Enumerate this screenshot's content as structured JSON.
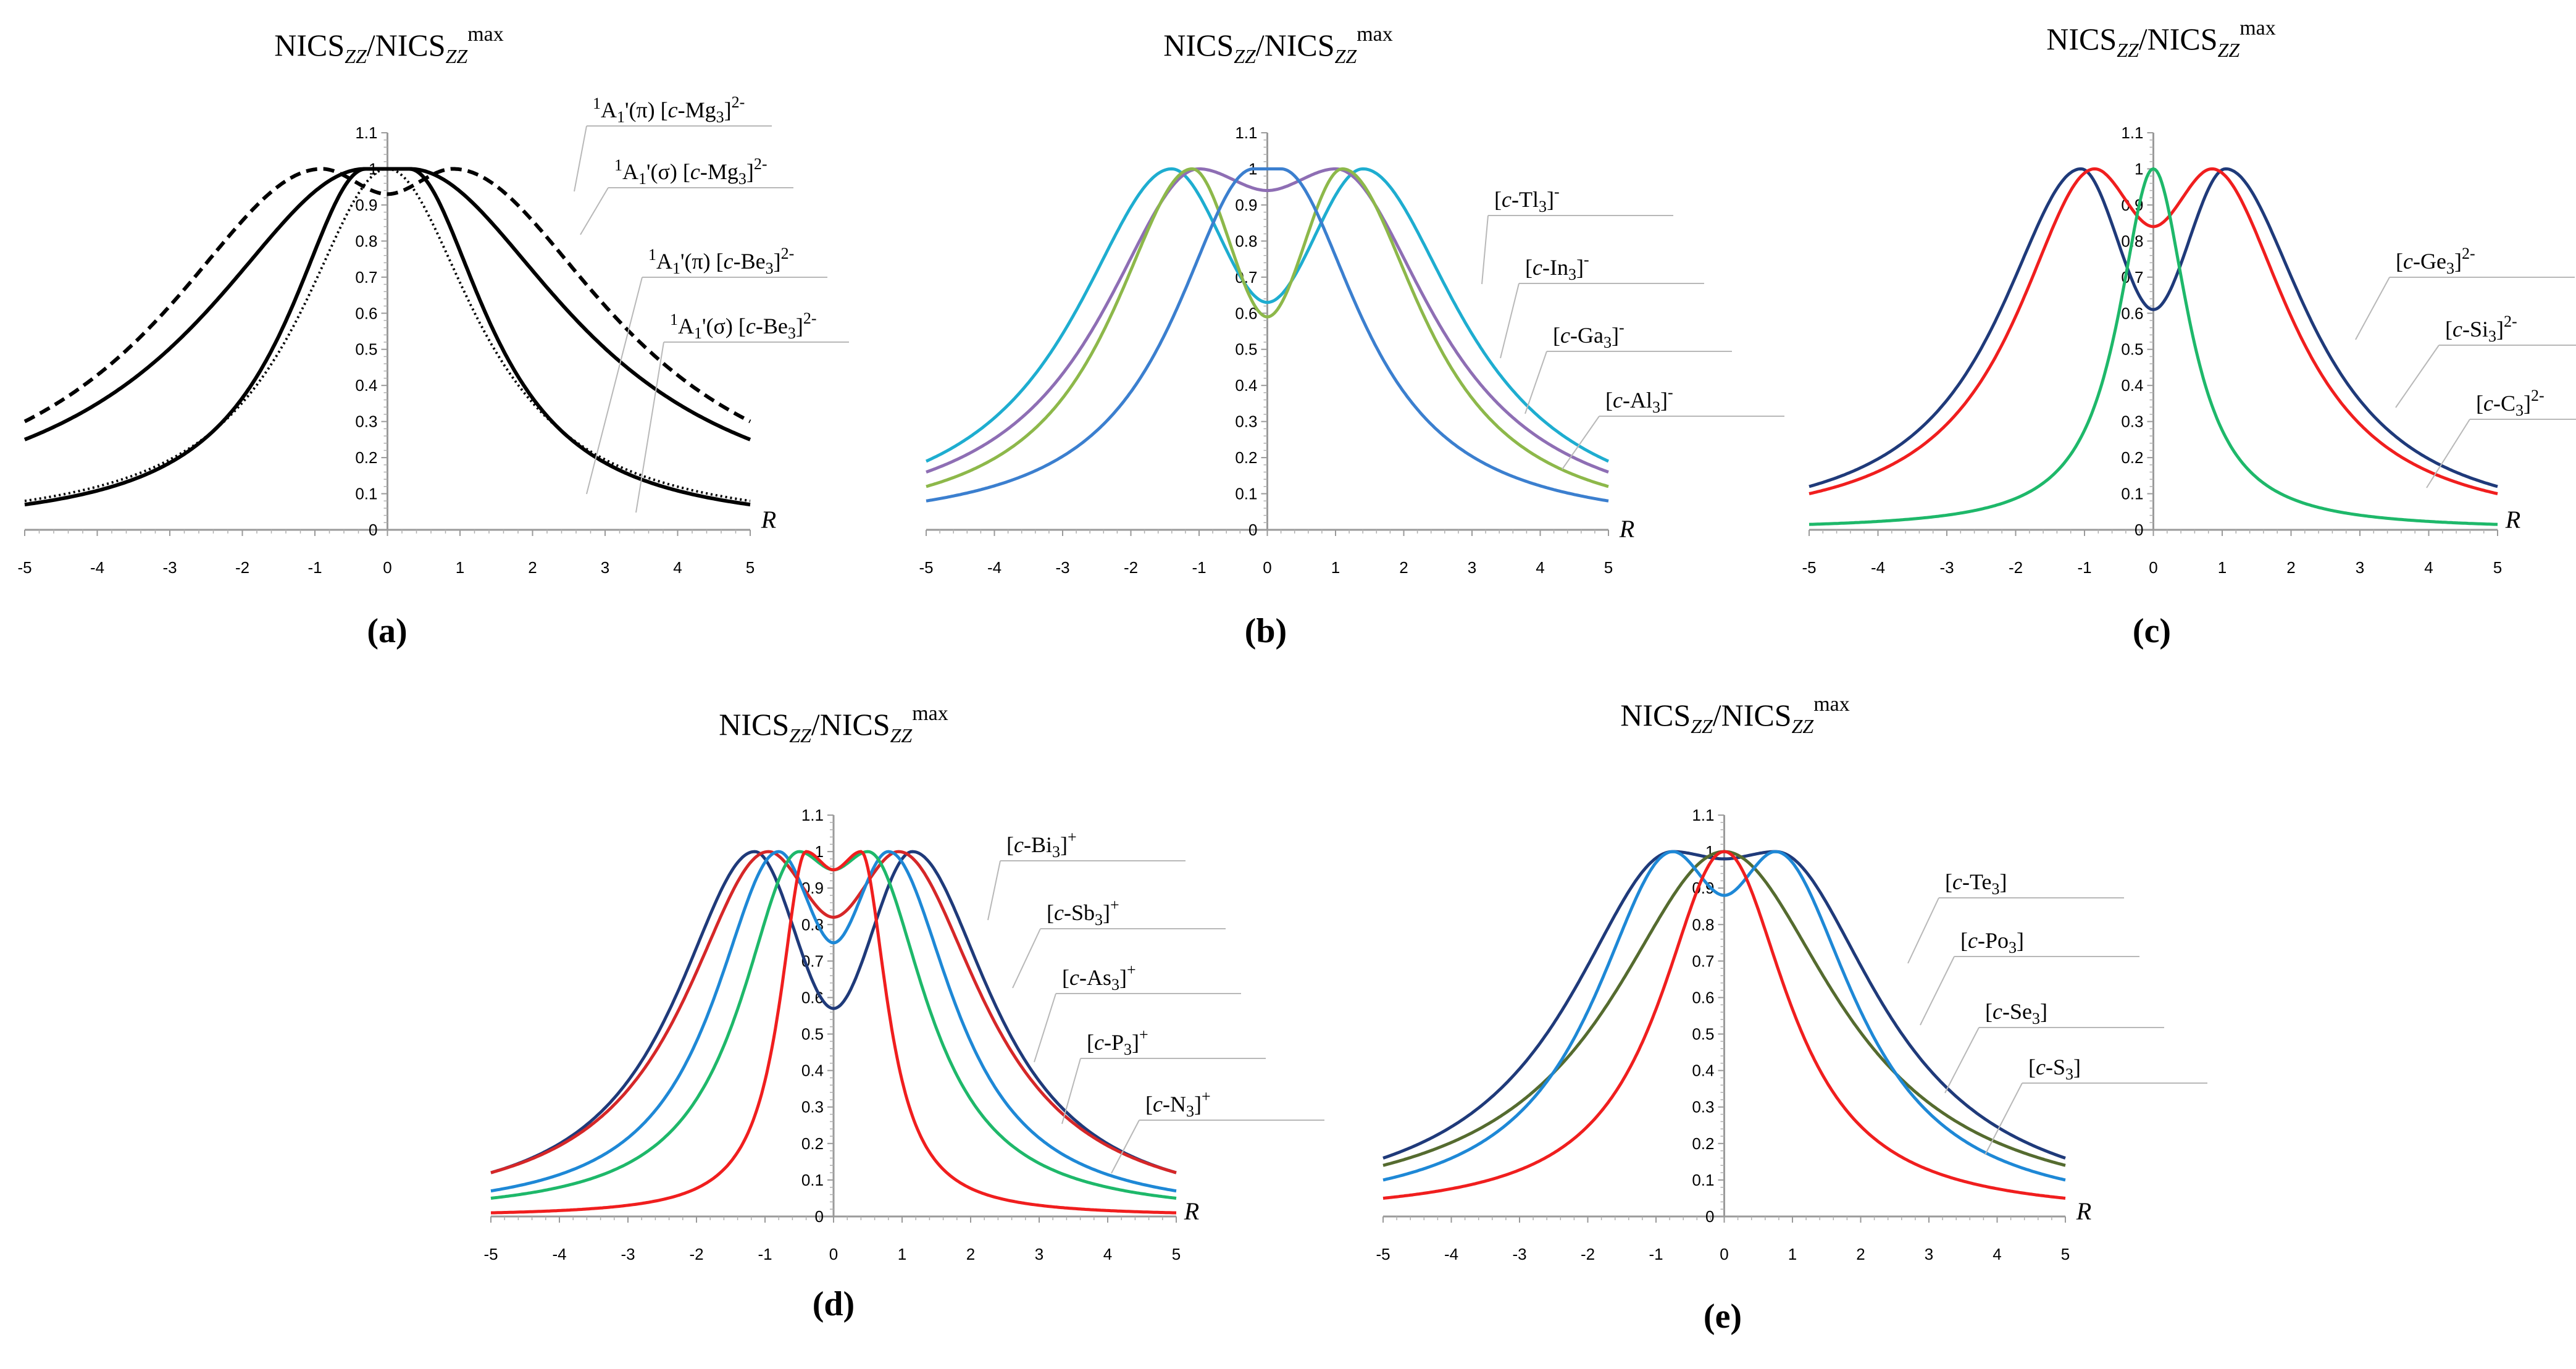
{
  "figure": {
    "panel_labels": [
      "(a)",
      "(b)",
      "(c)",
      "(d)",
      "(e)"
    ],
    "r_label": "R",
    "title": {
      "base1": "NICS",
      "sub1": "ZZ",
      "slash": "/NICS",
      "sub2": "ZZ",
      "sup": "max"
    }
  },
  "chart_data": [
    {
      "panel": "(a)",
      "type": "line",
      "xlabel": "R",
      "ylabel": "NICSZZ/NICSZZmax",
      "xlim": [
        -5,
        5
      ],
      "ylim": [
        0,
        1.1
      ],
      "xticks": [
        "-5",
        "-4",
        "-3",
        "-2",
        "-1",
        "0",
        "1",
        "2",
        "3",
        "4",
        "5"
      ],
      "yticks": [
        "0",
        "0.1",
        "0.2",
        "0.3",
        "0.4",
        "0.5",
        "0.6",
        "0.7",
        "0.8",
        "0.9",
        "1",
        "1.1"
      ],
      "series": [
        {
          "name": "1A1'(π) [c-Mg3]2-",
          "color": "#000000",
          "style": "dashed",
          "min_at_zero": 0.93,
          "peak_R": 0.9,
          "tail_at_5": 0.3
        },
        {
          "name": "1A1'(σ) [c-Mg3]2-",
          "color": "#000000",
          "style": "solid",
          "min_at_zero": 1.0,
          "peak_R": 0.3,
          "tail_at_5": 0.25
        },
        {
          "name": "1A1'(π) [c-Be3]2-",
          "color": "#000000",
          "style": "dotted",
          "min_at_zero": 1.0,
          "peak_R": 0.0,
          "tail_at_5": 0.08
        },
        {
          "name": "1A1'(σ) [c-Be3]2-",
          "color": "#000000",
          "style": "solid",
          "min_at_zero": 1.0,
          "peak_R": 0.3,
          "tail_at_5": 0.07
        }
      ],
      "legend": [
        {
          "sup": "1",
          "A": "A",
          "sub1": "1",
          "tail": "'(π) [",
          "c": "c",
          "el": "-Mg",
          "n": "3",
          "close": "]",
          "charge": "2-"
        },
        {
          "sup": "1",
          "A": "A",
          "sub1": "1",
          "tail": "'(σ) [",
          "c": "c",
          "el": "-Mg",
          "n": "3",
          "close": "]",
          "charge": "2-"
        },
        {
          "sup": "1",
          "A": "A",
          "sub1": "1",
          "tail": "'(π) [",
          "c": "c",
          "el": "-Be",
          "n": "3",
          "close": "]",
          "charge": "2-"
        },
        {
          "sup": "1",
          "A": "A",
          "sub1": "1",
          "tail": "'(σ) [",
          "c": "c",
          "el": "-Be",
          "n": "3",
          "close": "]",
          "charge": "2-"
        }
      ]
    },
    {
      "panel": "(b)",
      "type": "line",
      "xlabel": "R",
      "ylabel": "NICSZZ/NICSZZmax",
      "xlim": [
        -5,
        5
      ],
      "ylim": [
        0,
        1.1
      ],
      "xticks": [
        "-5",
        "-4",
        "-3",
        "-2",
        "-1",
        "0",
        "1",
        "2",
        "3",
        "4",
        "5"
      ],
      "yticks": [
        "0",
        "0.1",
        "0.2",
        "0.3",
        "0.4",
        "0.5",
        "0.6",
        "0.7",
        "0.8",
        "0.9",
        "1",
        "1.1"
      ],
      "series": [
        {
          "name": "[c-Tl3]-",
          "color": "#1EADD0",
          "min_at_zero": 0.63,
          "peak_R": 1.4,
          "tail_at_5": 0.19
        },
        {
          "name": "[c-In3]-",
          "color": "#8E6EB4",
          "min_at_zero": 0.94,
          "peak_R": 1.0,
          "tail_at_5": 0.16
        },
        {
          "name": "[c-Ga3]-",
          "color": "#8DB84A",
          "min_at_zero": 0.59,
          "peak_R": 1.1,
          "tail_at_5": 0.12
        },
        {
          "name": "[c-Al3]-",
          "color": "#3B7FCF",
          "min_at_zero": 1.0,
          "peak_R": 0.2,
          "tail_at_5": 0.08
        }
      ],
      "legend": [
        {
          "open": "[",
          "c": "c",
          "el": "-Tl",
          "n": "3",
          "close": "]",
          "charge": "-"
        },
        {
          "open": "[",
          "c": "c",
          "el": "-In",
          "n": "3",
          "close": "]",
          "charge": "-"
        },
        {
          "open": "[",
          "c": "c",
          "el": "-Ga",
          "n": "3",
          "close": "]",
          "charge": "-"
        },
        {
          "open": "[",
          "c": "c",
          "el": "-Al",
          "n": "3",
          "close": "]",
          "charge": "-"
        }
      ]
    },
    {
      "panel": "(c)",
      "type": "line",
      "xlabel": "R",
      "ylabel": "NICSZZ/NICSZZmax",
      "xlim": [
        -5,
        5
      ],
      "ylim": [
        0,
        1.1
      ],
      "xticks": [
        "-5",
        "-4",
        "-3",
        "-2",
        "-1",
        "0",
        "1",
        "2",
        "3",
        "4",
        "5"
      ],
      "yticks": [
        "0",
        "0.1",
        "0.2",
        "0.3",
        "0.4",
        "0.5",
        "0.6",
        "0.7",
        "0.8",
        "0.9",
        "1",
        "1.1"
      ],
      "series": [
        {
          "name": "[c-Ge3]2-",
          "color": "#1F3A7A",
          "min_at_zero": 0.61,
          "peak_R": 1.05,
          "tail_at_5": 0.12
        },
        {
          "name": "[c-Si3]2-",
          "color": "#F01E1E",
          "min_at_zero": 0.84,
          "peak_R": 0.85,
          "tail_at_5": 0.1
        },
        {
          "name": "[c-C3]2-",
          "color": "#1EB86A",
          "min_at_zero": 1.0,
          "peak_R": 0.0,
          "tail_at_5": 0.015
        }
      ],
      "legend": [
        {
          "open": "[",
          "c": "c",
          "el": "-Ge",
          "n": "3",
          "close": "]",
          "charge": "2-"
        },
        {
          "open": "[",
          "c": "c",
          "el": "-Si",
          "n": "3",
          "close": "]",
          "charge": "2-"
        },
        {
          "open": "[",
          "c": "c",
          "el": "-C",
          "n": "3",
          "close": "]",
          "charge": "2-"
        }
      ]
    },
    {
      "panel": "(d)",
      "type": "line",
      "xlabel": "R",
      "ylabel": "NICSZZ/NICSZZmax",
      "xlim": [
        -5,
        5
      ],
      "ylim": [
        0,
        1.1
      ],
      "xticks": [
        "-5",
        "-4",
        "-3",
        "-2",
        "-1",
        "0",
        "1",
        "2",
        "3",
        "4",
        "5"
      ],
      "yticks": [
        "0",
        "0.1",
        "0.2",
        "0.3",
        "0.4",
        "0.5",
        "0.6",
        "0.7",
        "0.8",
        "0.9",
        "1",
        "1.1"
      ],
      "series": [
        {
          "name": "[c-Bi3]+",
          "color": "#1F3A7A",
          "min_at_zero": 0.57,
          "peak_R": 1.15,
          "tail_at_5": 0.12
        },
        {
          "name": "[c-Sb3]+",
          "color": "#D62728",
          "min_at_zero": 0.82,
          "peak_R": 0.95,
          "tail_at_5": 0.12
        },
        {
          "name": "[c-As3]+",
          "color": "#1E88D6",
          "min_at_zero": 0.75,
          "peak_R": 0.8,
          "tail_at_5": 0.07
        },
        {
          "name": "[c-P3]+",
          "color": "#1EB86A",
          "min_at_zero": 0.95,
          "peak_R": 0.5,
          "tail_at_5": 0.05
        },
        {
          "name": "[c-N3]+",
          "color": "#F01E1E",
          "min_at_zero": 0.95,
          "peak_R": 0.4,
          "tail_at_5": 0.01
        }
      ],
      "legend": [
        {
          "open": "[",
          "c": "c",
          "el": "-Bi",
          "n": "3",
          "close": "]",
          "charge": "+"
        },
        {
          "open": "[",
          "c": "c",
          "el": "-Sb",
          "n": "3",
          "close": "]",
          "charge": "+"
        },
        {
          "open": "[",
          "c": "c",
          "el": "-As",
          "n": "3",
          "close": "]",
          "charge": "+"
        },
        {
          "open": "[",
          "c": "c",
          "el": "-P",
          "n": "3",
          "close": "]",
          "charge": "+"
        },
        {
          "open": "[",
          "c": "c",
          "el": "-N",
          "n": "3",
          "close": "]",
          "charge": "+"
        }
      ]
    },
    {
      "panel": "(e)",
      "type": "line",
      "xlabel": "R",
      "ylabel": "NICSZZ/NICSZZmax",
      "xlim": [
        -5,
        5
      ],
      "ylim": [
        0,
        1.1
      ],
      "xticks": [
        "-5",
        "-4",
        "-3",
        "-2",
        "-1",
        "0",
        "1",
        "2",
        "3",
        "4",
        "5"
      ],
      "yticks": [
        "0",
        "0.1",
        "0.2",
        "0.3",
        "0.4",
        "0.5",
        "0.6",
        "0.7",
        "0.8",
        "0.9",
        "1",
        "1.1"
      ],
      "series": [
        {
          "name": "[c-Te3]",
          "color": "#1F3A7A",
          "min_at_zero": 0.98,
          "peak_R": 0.75,
          "tail_at_5": 0.16
        },
        {
          "name": "[c-Po3]",
          "color": "#556B2F",
          "min_at_zero": 1.0,
          "peak_R": 0.0,
          "tail_at_5": 0.14
        },
        {
          "name": "[c-Se3]",
          "color": "#1E88D6",
          "min_at_zero": 0.88,
          "peak_R": 0.75,
          "tail_at_5": 0.1
        },
        {
          "name": "[c-S3]",
          "color": "#F01E1E",
          "min_at_zero": 1.0,
          "peak_R": 0.0,
          "tail_at_5": 0.05
        }
      ],
      "legend": [
        {
          "open": "[",
          "c": "c",
          "el": "-Te",
          "n": "3",
          "close": "]",
          "charge": ""
        },
        {
          "open": "[",
          "c": "c",
          "el": "-Po",
          "n": "3",
          "close": "]",
          "charge": ""
        },
        {
          "open": "[",
          "c": "c",
          "el": "-Se",
          "n": "3",
          "close": "]",
          "charge": ""
        },
        {
          "open": "[",
          "c": "c",
          "el": "-S",
          "n": "3",
          "close": "]",
          "charge": ""
        }
      ]
    }
  ]
}
